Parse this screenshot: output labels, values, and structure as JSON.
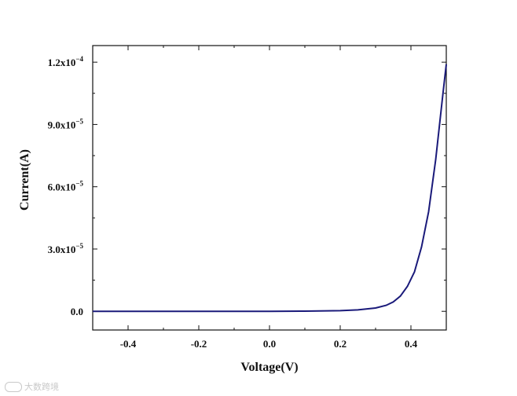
{
  "chart_data": {
    "type": "line",
    "xlabel": "Voltage(V)",
    "ylabel": "Current(A)",
    "xlim": [
      -0.5,
      0.5
    ],
    "ylim": [
      -9e-06,
      0.000128
    ],
    "x_ticks": [
      {
        "value": -0.4,
        "label": "-0.4"
      },
      {
        "value": -0.2,
        "label": "-0.2"
      },
      {
        "value": 0.0,
        "label": "0.0"
      },
      {
        "value": 0.2,
        "label": "0.2"
      },
      {
        "value": 0.4,
        "label": "0.4"
      }
    ],
    "y_ticks": [
      {
        "value": 0.0,
        "base": "0.0",
        "exp": ""
      },
      {
        "value": 3e-05,
        "base": "3.0x10",
        "exp": "−5"
      },
      {
        "value": 6e-05,
        "base": "6.0x10",
        "exp": "−5"
      },
      {
        "value": 9e-05,
        "base": "9.0x10",
        "exp": "−5"
      },
      {
        "value": 0.00012,
        "base": "1.2x10",
        "exp": "−4"
      }
    ],
    "grid": false,
    "series_color": "#1a1a7a",
    "x": [
      -0.5,
      -0.4,
      -0.3,
      -0.2,
      -0.1,
      0.0,
      0.1,
      0.2,
      0.25,
      0.3,
      0.33,
      0.35,
      0.37,
      0.39,
      0.41,
      0.43,
      0.45,
      0.47,
      0.49,
      0.5
    ],
    "y": [
      0,
      0,
      0,
      0,
      0,
      0,
      1e-07,
      3e-07,
      7e-07,
      1.6e-06,
      2.9e-06,
      4.5e-06,
      7.3e-06,
      1.2e-05,
      1.9e-05,
      3.1e-05,
      4.8e-05,
      7.3e-05,
      0.000104,
      0.000119
    ]
  },
  "watermark": {
    "text": "大数跨境"
  }
}
